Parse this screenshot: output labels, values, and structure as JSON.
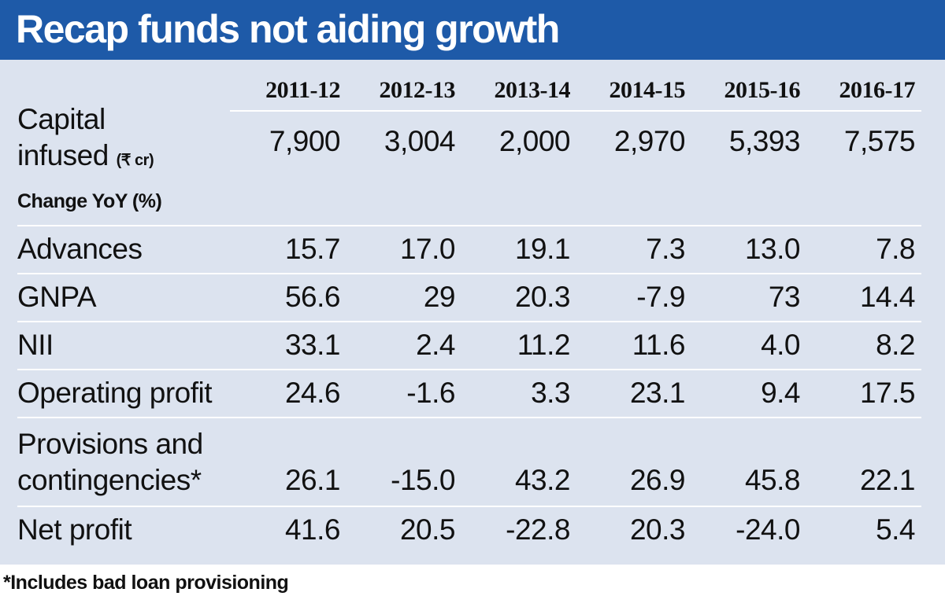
{
  "chart_data": {
    "type": "table",
    "title": "Recap funds not aiding growth",
    "columns": [
      "2011-12",
      "2012-13",
      "2013-14",
      "2014-15",
      "2015-16",
      "2016-17"
    ],
    "capital_row": {
      "label_line1": "Capital",
      "label_line2": "infused",
      "unit": "(₹ cr)",
      "values": [
        "7,900",
        "3,004",
        "2,000",
        "2,970",
        "5,393",
        "7,575"
      ]
    },
    "section_label": "Change YoY (%)",
    "rows": [
      {
        "label": "Advances",
        "values": [
          "15.7",
          "17.0",
          "19.1",
          "7.3",
          "13.0",
          "7.8"
        ]
      },
      {
        "label": "GNPA",
        "values": [
          "56.6",
          "29",
          "20.3",
          "-7.9",
          "73",
          "14.4"
        ]
      },
      {
        "label": "NII",
        "values": [
          "33.1",
          "2.4",
          "11.2",
          "11.6",
          "4.0",
          "8.2"
        ]
      },
      {
        "label": "Operating profit",
        "values": [
          "24.6",
          "-1.6",
          "3.3",
          "23.1",
          "9.4",
          "17.5"
        ]
      },
      {
        "label_line1": "Provisions and",
        "label_line2": "contingencies*",
        "values": [
          "26.1",
          "-15.0",
          "43.2",
          "26.9",
          "45.8",
          "22.1"
        ]
      },
      {
        "label": "Net profit",
        "values": [
          "41.6",
          "20.5",
          "-22.8",
          "20.3",
          "-24.0",
          "5.4"
        ]
      }
    ],
    "footnote": "*Includes bad loan provisioning"
  },
  "colors": {
    "banner": "#1e5aa8",
    "panel": "#dce3ef",
    "rule": "#ffffff",
    "text": "#111111"
  }
}
